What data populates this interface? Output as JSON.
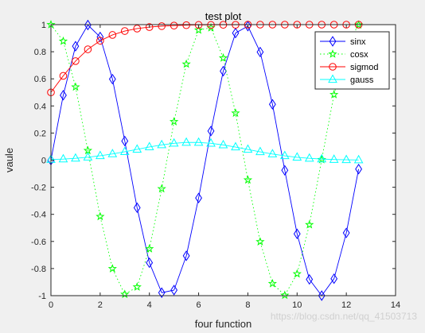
{
  "chart_data": {
    "type": "line",
    "title": "test plot",
    "xlabel": "four function",
    "ylabel": "vaule",
    "xlim": [
      0,
      14
    ],
    "ylim": [
      -1,
      1
    ],
    "xticks": [
      0,
      2,
      4,
      6,
      8,
      10,
      12,
      14
    ],
    "yticks": [
      -1,
      -0.8,
      -0.6,
      -0.4,
      -0.2,
      0,
      0.2,
      0.4,
      0.6,
      0.8,
      1
    ],
    "grid": false,
    "legend_location": "top-right",
    "x": [
      0,
      0.5,
      1,
      1.5,
      2,
      2.5,
      3,
      3.5,
      4,
      4.5,
      5,
      5.5,
      6,
      6.5,
      7,
      7.5,
      8,
      8.5,
      9,
      9.5,
      10,
      10.5,
      11,
      11.5,
      12,
      12.5
    ],
    "series": [
      {
        "name": "sinx",
        "color": "#0000ff",
        "line": "solid",
        "marker": "diamond",
        "values": [
          0,
          0.479,
          0.841,
          0.997,
          0.909,
          0.598,
          0.141,
          -0.351,
          -0.757,
          -0.978,
          -0.959,
          -0.706,
          -0.279,
          0.215,
          0.657,
          0.938,
          0.989,
          0.798,
          0.412,
          -0.075,
          -0.544,
          -0.88,
          -1.0,
          -0.875,
          -0.537,
          -0.066
        ]
      },
      {
        "name": "cosx",
        "color": "#00ff00",
        "line": "dotted",
        "marker": "pentagram",
        "values": [
          1,
          0.878,
          0.54,
          0.071,
          -0.416,
          -0.801,
          -0.99,
          -0.936,
          -0.654,
          -0.211,
          0.284,
          0.709,
          0.96,
          0.977,
          0.754,
          0.347,
          -0.146,
          -0.602,
          -0.911,
          -0.997,
          -0.839,
          -0.476,
          0.004,
          0.484,
          0.844,
          0.998
        ]
      },
      {
        "name": "sigmod",
        "color": "#ff0000",
        "line": "solid",
        "marker": "circle",
        "values": [
          0.5,
          0.622,
          0.731,
          0.818,
          0.881,
          0.924,
          0.953,
          0.971,
          0.982,
          0.989,
          0.993,
          0.996,
          0.998,
          0.998,
          0.999,
          0.999,
          1.0,
          1.0,
          1.0,
          1.0,
          1.0,
          1.0,
          1.0,
          1.0,
          1.0,
          1.0
        ]
      },
      {
        "name": "gauss",
        "color": "#00ffff",
        "line": "solid",
        "marker": "triangle",
        "values": [
          0.0045,
          0.008,
          0.0135,
          0.0215,
          0.0323,
          0.046,
          0.0622,
          0.0798,
          0.0973,
          0.1128,
          0.1244,
          0.1306,
          0.1305,
          0.1241,
          0.1122,
          0.0965,
          0.0789,
          0.0614,
          0.0453,
          0.0318,
          0.0212,
          0.0134,
          0.0081,
          0.0046,
          0.0025,
          0.0013
        ]
      }
    ]
  },
  "watermark": "https://blog.csdn.net/qq_41503713"
}
